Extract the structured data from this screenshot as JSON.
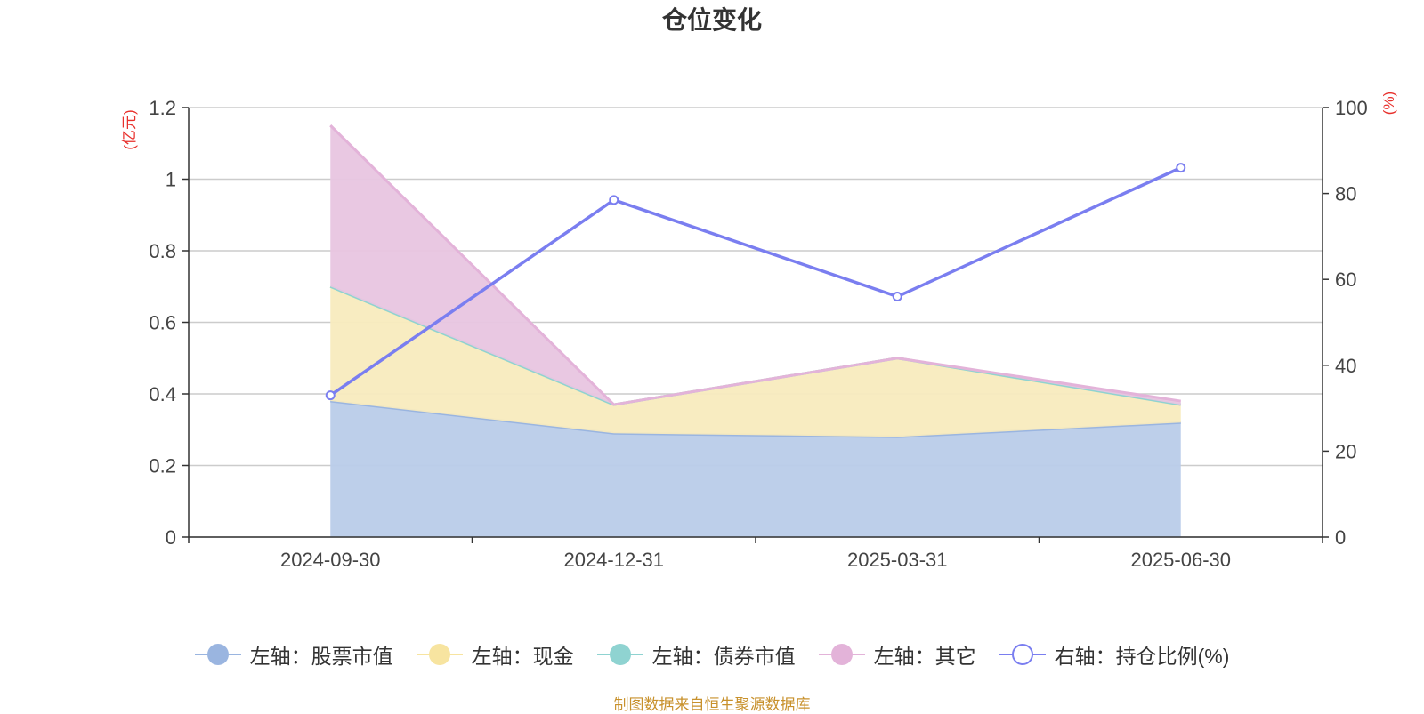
{
  "chart_data": {
    "type": "area",
    "title": "仓位变化",
    "categories": [
      "2024-09-30",
      "2024-12-31",
      "2025-03-31",
      "2025-06-30"
    ],
    "left_axis": {
      "unit_label": "(亿元)",
      "ylim": [
        0,
        1.2
      ],
      "ticks": [
        "0",
        "0.2",
        "0.4",
        "0.6",
        "0.8",
        "1",
        "1.2"
      ]
    },
    "right_axis": {
      "unit_label": "(%)",
      "ylim": [
        0,
        100
      ],
      "ticks": [
        "0",
        "20",
        "40",
        "60",
        "80",
        "100"
      ]
    },
    "grid": true,
    "legend_position": "bottom",
    "stacked_series": [
      {
        "name": "左轴：股票市值",
        "axis": "left",
        "color": "#9ab5e0",
        "fill": "#b9cce9",
        "values": [
          0.38,
          0.29,
          0.28,
          0.32
        ]
      },
      {
        "name": "左轴：现金",
        "axis": "left",
        "color": "#f7e4a0",
        "fill": "#f8ebbe",
        "values": [
          0.32,
          0.08,
          0.22,
          0.05
        ]
      },
      {
        "name": "左轴：债券市值",
        "axis": "left",
        "color": "#8fd3d1",
        "fill": "#b5e3e1",
        "values": [
          0,
          0,
          0,
          0
        ]
      },
      {
        "name": "左轴：其它",
        "axis": "left",
        "color": "#e3b3d9",
        "fill": "#e8c5e0",
        "values": [
          0.45,
          0,
          0,
          0.01
        ]
      }
    ],
    "line_series": [
      {
        "name": "右轴：持仓比例(%)",
        "axis": "right",
        "color": "#7a7ef0",
        "values": [
          33,
          78.5,
          56,
          86
        ]
      }
    ]
  },
  "footer": {
    "source": "制图数据来自恒生聚源数据库"
  }
}
